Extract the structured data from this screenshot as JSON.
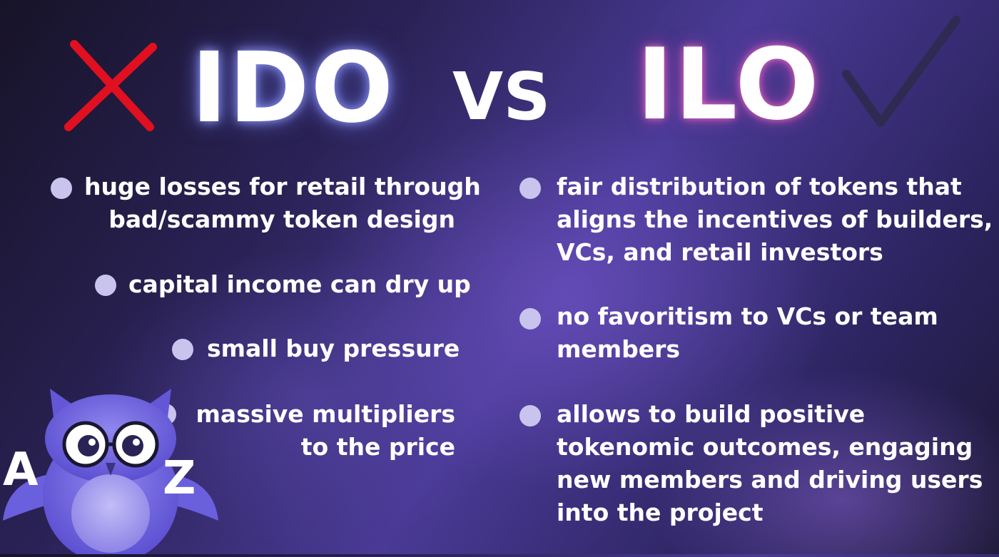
{
  "header": {
    "left_title": "IDO",
    "vs_label": "VS",
    "right_title": "ILO"
  },
  "left_list": [
    {
      "lines": [
        "huge losses for retail through",
        "bad/scammy token design"
      ]
    },
    {
      "lines": [
        "capital income can dry up"
      ]
    },
    {
      "lines": [
        "small buy pressure"
      ]
    },
    {
      "lines": [
        "massive multipliers",
        "to the price"
      ]
    }
  ],
  "right_list": [
    {
      "lines": [
        "fair distribution of tokens that",
        "aligns the incentives of builders,",
        "VCs, and retail investors"
      ]
    },
    {
      "lines": [
        "no favoritism to VCs or team",
        "members"
      ]
    },
    {
      "lines": [
        "allows to build positive",
        "tokenomic outcomes, engaging",
        "new members and driving users",
        "into the project"
      ]
    }
  ],
  "mascot": {
    "letter_left": "A",
    "letter_right": "Z"
  },
  "colors": {
    "cross": "#e01020",
    "check": "#2e2a52",
    "bullet": "#c9c4ee",
    "text": "#ffffff"
  },
  "icons": {
    "left_marker": "cross-icon",
    "right_marker": "checkmark-icon",
    "mascot": "owl-mascot-icon"
  }
}
